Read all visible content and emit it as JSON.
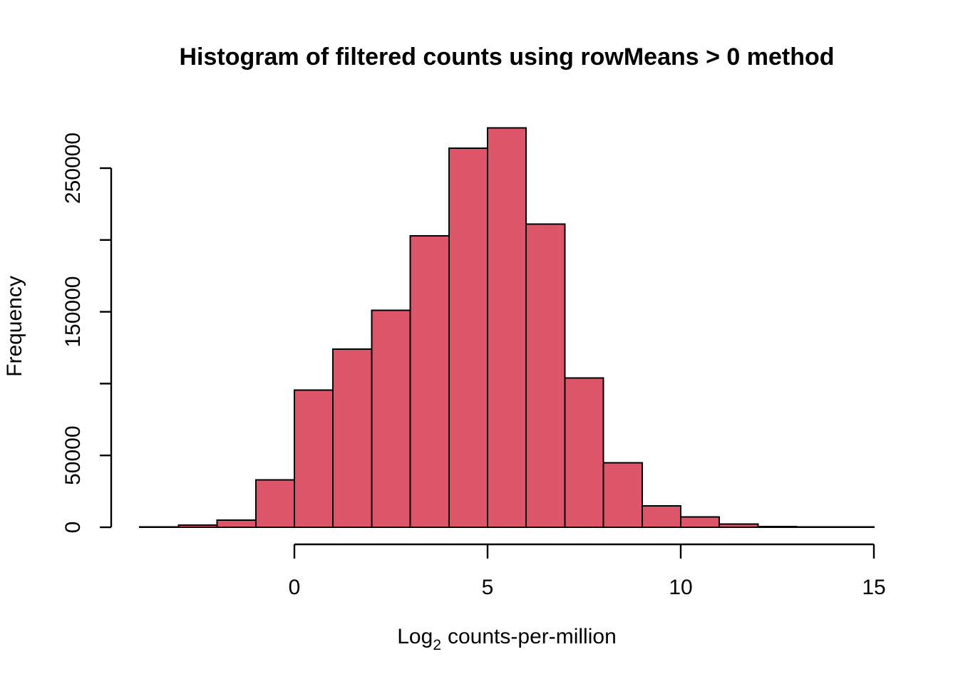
{
  "chart_data": {
    "type": "histogram",
    "title": "Histogram of filtered counts using rowMeans > 0 method",
    "xlabel_base": "Log",
    "xlabel_subscript": "2",
    "xlabel_rest": "counts-per-million",
    "ylabel": "Frequency",
    "breaks": [
      -4,
      -3,
      -2,
      -1,
      0,
      1,
      2,
      3,
      4,
      5,
      6,
      7,
      8,
      9,
      10,
      11,
      12,
      13,
      14,
      15
    ],
    "counts": [
      300,
      1400,
      5000,
      33000,
      95500,
      124000,
      151000,
      203000,
      264000,
      278000,
      211000,
      104000,
      45000,
      14800,
      7300,
      2300,
      600,
      150,
      80
    ],
    "x_ticks": [
      {
        "v": 0,
        "label": "0"
      },
      {
        "v": 5,
        "label": "5"
      },
      {
        "v": 10,
        "label": "10"
      },
      {
        "v": 15,
        "label": "15"
      }
    ],
    "y_ticks": [
      {
        "v": 0,
        "label": "0"
      },
      {
        "v": 50000,
        "label": "50000"
      },
      {
        "v": 100000,
        "label": ""
      },
      {
        "v": 150000,
        "label": "150000"
      },
      {
        "v": 200000,
        "label": ""
      },
      {
        "v": 250000,
        "label": "250000"
      }
    ],
    "x_axis_range": [
      0,
      15
    ],
    "y_axis_range": [
      0,
      250000
    ],
    "grid": false,
    "legend": false,
    "colors": {
      "bar_fill": "#DC5568",
      "bar_stroke": "#000000",
      "axis": "#000000",
      "background": "#FFFFFF"
    }
  }
}
